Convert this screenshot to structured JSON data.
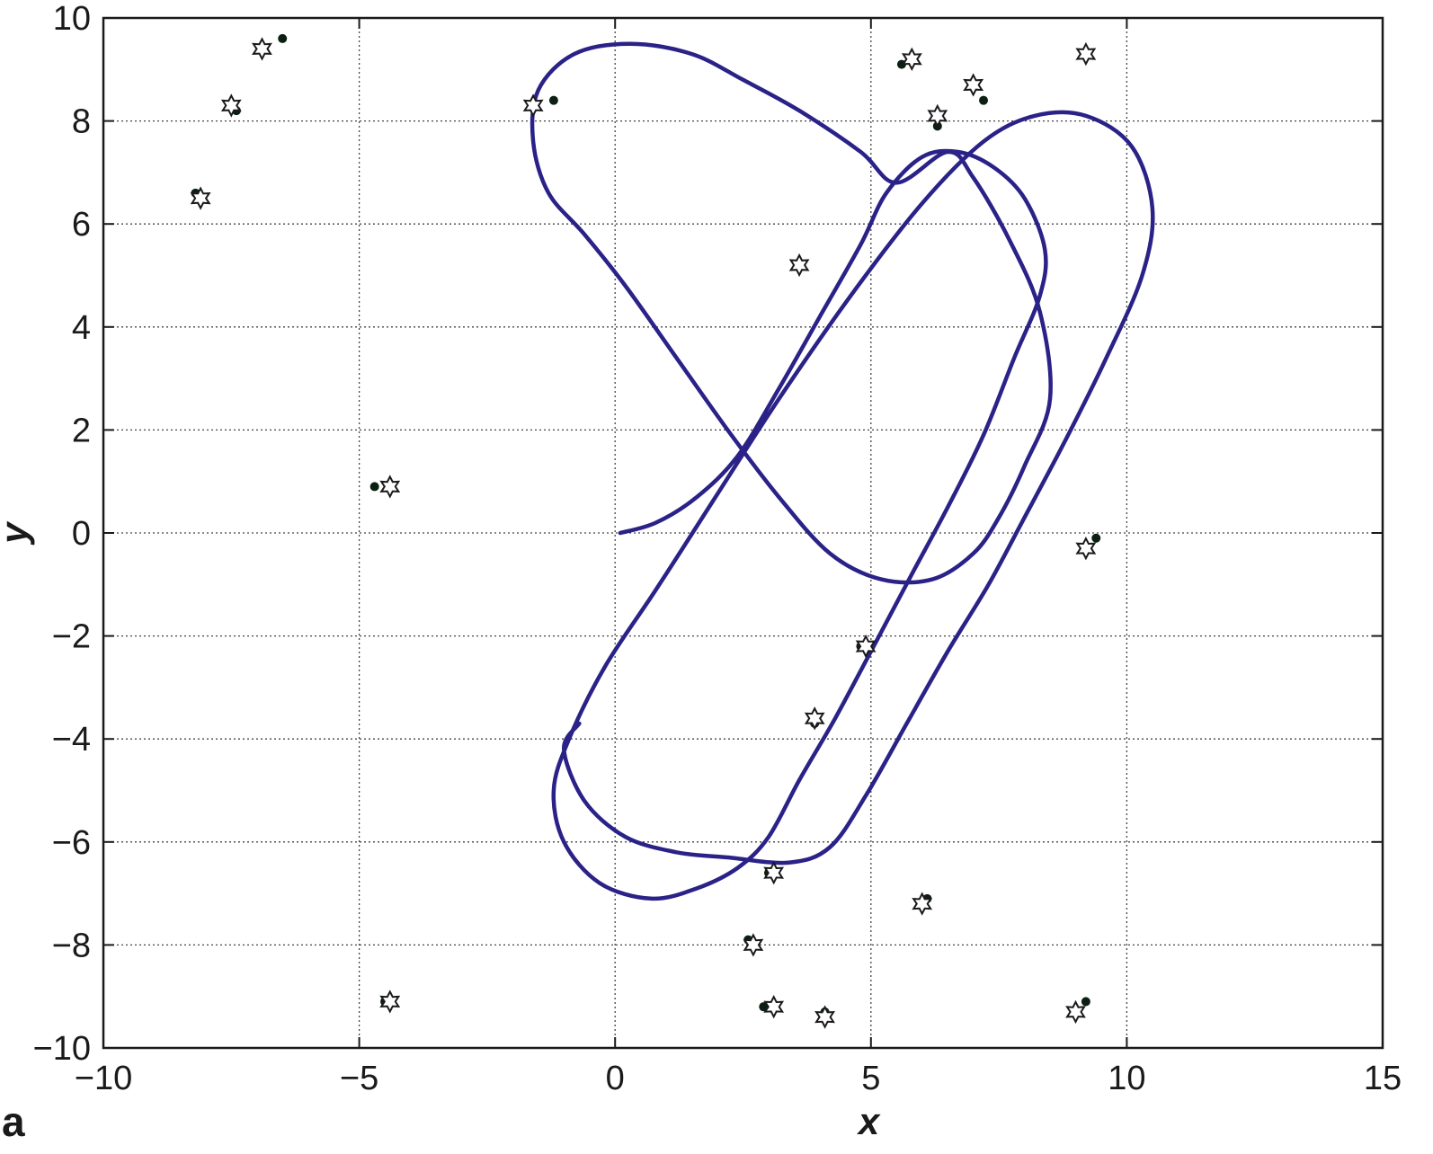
{
  "panel_label": "a",
  "chart_data": {
    "type": "scatter",
    "xlabel": "x",
    "ylabel": "y",
    "xlim": [
      -10,
      15
    ],
    "ylim": [
      -10,
      10
    ],
    "x_ticks": [
      -10,
      -5,
      0,
      5,
      10,
      15
    ],
    "x_tick_labels": [
      "−10",
      "−5",
      "0",
      "5",
      "10",
      "15"
    ],
    "y_ticks": [
      -10,
      -8,
      -6,
      -4,
      -2,
      0,
      2,
      4,
      6,
      8,
      10
    ],
    "y_tick_labels": [
      "−10",
      "−8",
      "−6",
      "−4",
      "−2",
      "0",
      "2",
      "4",
      "6",
      "8",
      "10"
    ],
    "grid": true,
    "grid_style": "dotted",
    "colors": {
      "trajectory": "#2a2287",
      "dots": "#0d1f12",
      "stars": "#1a1a1a",
      "grid": "#444444",
      "axes": "#1a1a1a"
    },
    "trajectory": [
      [
        0.1,
        0.0
      ],
      [
        0.8,
        0.2
      ],
      [
        1.6,
        0.7
      ],
      [
        2.4,
        1.5
      ],
      [
        3.2,
        2.8
      ],
      [
        4.0,
        4.2
      ],
      [
        4.8,
        5.6
      ],
      [
        5.3,
        6.6
      ],
      [
        6.0,
        7.3
      ],
      [
        6.7,
        7.4
      ],
      [
        7.4,
        7.1
      ],
      [
        8.0,
        6.5
      ],
      [
        8.4,
        5.5
      ],
      [
        8.3,
        4.6
      ],
      [
        7.8,
        3.4
      ],
      [
        7.2,
        1.9
      ],
      [
        6.5,
        0.5
      ],
      [
        5.8,
        -0.8
      ],
      [
        5.0,
        -2.3
      ],
      [
        4.3,
        -3.6
      ],
      [
        3.6,
        -4.8
      ],
      [
        3.0,
        -5.9
      ],
      [
        2.4,
        -6.5
      ],
      [
        1.6,
        -6.9
      ],
      [
        0.7,
        -7.1
      ],
      [
        -0.3,
        -6.8
      ],
      [
        -1.0,
        -6.0
      ],
      [
        -1.2,
        -5.0
      ],
      [
        -0.9,
        -4.0
      ],
      [
        -0.2,
        -2.6
      ],
      [
        0.8,
        -1.1
      ],
      [
        1.9,
        0.6
      ],
      [
        3.2,
        2.6
      ],
      [
        4.6,
        4.6
      ],
      [
        6.0,
        6.4
      ],
      [
        7.2,
        7.6
      ],
      [
        8.2,
        8.1
      ],
      [
        9.2,
        8.1
      ],
      [
        10.1,
        7.5
      ],
      [
        10.5,
        6.3
      ],
      [
        10.3,
        5.0
      ],
      [
        9.6,
        3.4
      ],
      [
        8.8,
        1.8
      ],
      [
        8.0,
        0.3
      ],
      [
        7.3,
        -1.0
      ],
      [
        6.5,
        -2.3
      ],
      [
        5.7,
        -3.7
      ],
      [
        4.9,
        -5.1
      ],
      [
        4.2,
        -6.1
      ],
      [
        3.4,
        -6.4
      ],
      [
        2.2,
        -6.3
      ],
      [
        1.2,
        -6.2
      ],
      [
        0.2,
        -5.9
      ],
      [
        -0.6,
        -5.2
      ],
      [
        -1.0,
        -4.2
      ],
      [
        -0.7,
        -3.7
      ]
    ],
    "loop": [
      [
        5.5,
        6.8
      ],
      [
        4.8,
        7.4
      ],
      [
        3.6,
        8.2
      ],
      [
        2.5,
        8.8
      ],
      [
        1.5,
        9.3
      ],
      [
        0.3,
        9.5
      ],
      [
        -0.8,
        9.3
      ],
      [
        -1.5,
        8.6
      ],
      [
        -1.6,
        7.6
      ],
      [
        -1.3,
        6.6
      ],
      [
        -0.6,
        5.8
      ],
      [
        0.2,
        4.8
      ],
      [
        1.2,
        3.4
      ],
      [
        2.2,
        2.0
      ],
      [
        3.2,
        0.7
      ],
      [
        4.2,
        -0.4
      ],
      [
        5.2,
        -0.9
      ],
      [
        6.2,
        -0.9
      ],
      [
        7.0,
        -0.4
      ],
      [
        7.5,
        0.3
      ],
      [
        8.0,
        1.3
      ],
      [
        8.5,
        2.6
      ],
      [
        8.3,
        4.3
      ],
      [
        7.7,
        5.7
      ],
      [
        7.0,
        6.9
      ],
      [
        6.5,
        7.4
      ]
    ],
    "dots": [
      [
        -6.5,
        9.6
      ],
      [
        -7.4,
        8.2
      ],
      [
        -8.2,
        6.6
      ],
      [
        -4.7,
        0.9
      ],
      [
        -4.5,
        -9.1
      ],
      [
        -1.2,
        8.4
      ],
      [
        5.6,
        9.1
      ],
      [
        7.2,
        8.4
      ],
      [
        6.3,
        7.9
      ],
      [
        9.2,
        9.3
      ],
      [
        3.6,
        5.2
      ],
      [
        9.4,
        -0.1
      ],
      [
        4.8,
        -2.2
      ],
      [
        3.9,
        -3.7
      ],
      [
        3.0,
        -6.6
      ],
      [
        2.6,
        -7.9
      ],
      [
        2.9,
        -9.2
      ],
      [
        4.1,
        -9.3
      ],
      [
        6.1,
        -7.1
      ],
      [
        9.2,
        -9.1
      ]
    ],
    "stars": [
      [
        -6.9,
        9.4
      ],
      [
        -7.5,
        8.3
      ],
      [
        -8.1,
        6.5
      ],
      [
        -4.4,
        0.9
      ],
      [
        -4.4,
        -9.1
      ],
      [
        -1.6,
        8.3
      ],
      [
        5.8,
        9.2
      ],
      [
        7.0,
        8.7
      ],
      [
        6.3,
        8.1
      ],
      [
        9.2,
        9.3
      ],
      [
        3.6,
        5.2
      ],
      [
        9.2,
        -0.3
      ],
      [
        4.9,
        -2.2
      ],
      [
        3.9,
        -3.6
      ],
      [
        3.1,
        -6.6
      ],
      [
        2.7,
        -8.0
      ],
      [
        3.1,
        -9.2
      ],
      [
        4.1,
        -9.4
      ],
      [
        6.0,
        -7.2
      ],
      [
        9.0,
        -9.3
      ]
    ]
  }
}
